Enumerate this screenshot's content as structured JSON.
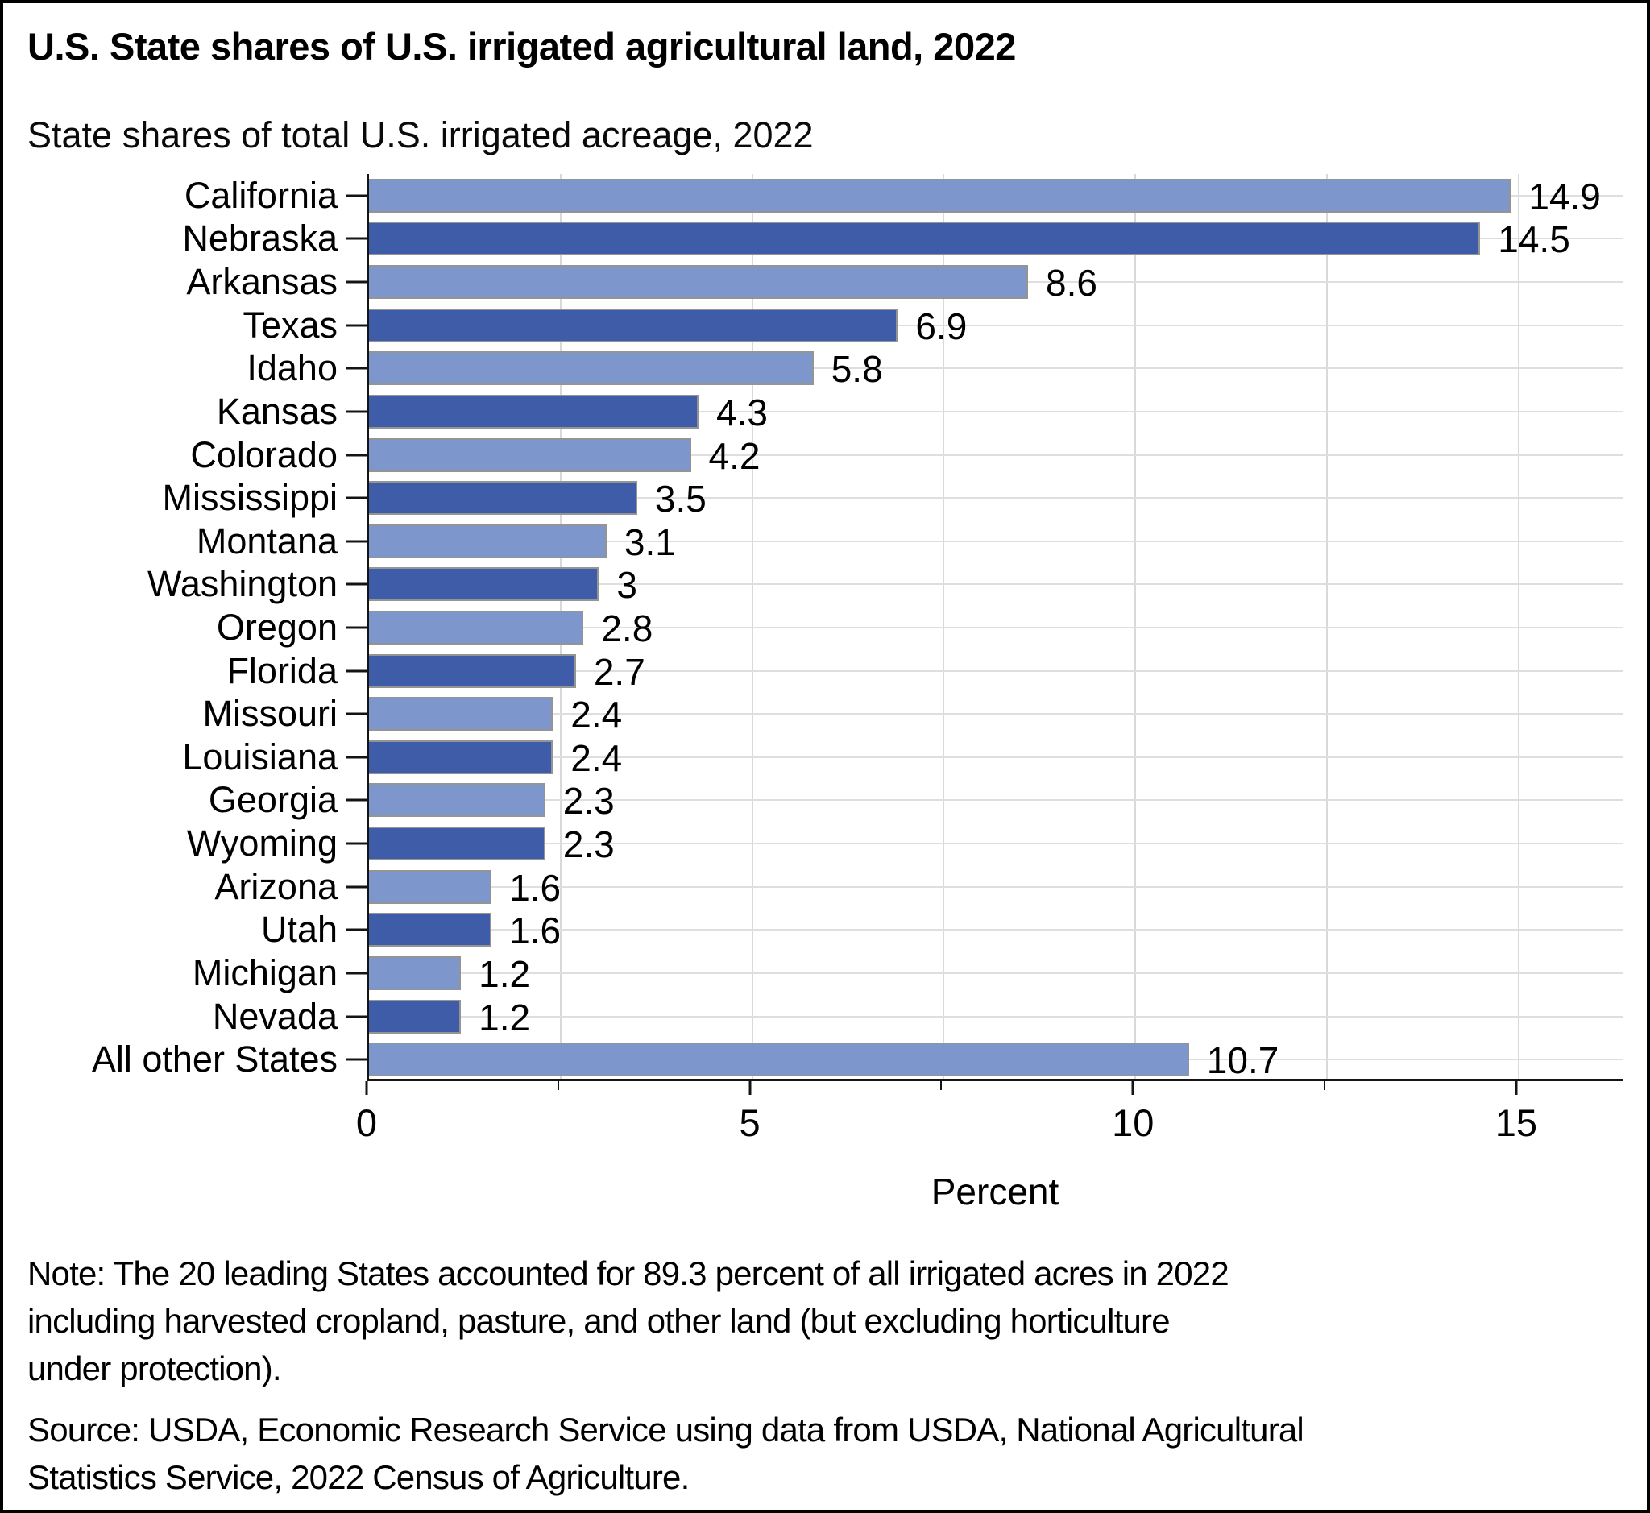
{
  "header": {
    "title": "U.S. State shares of U.S. irrigated agricultural land, 2022",
    "subtitle": "State shares of total U.S. irrigated acreage, 2022"
  },
  "chart_data": {
    "type": "bar",
    "orientation": "horizontal",
    "title": "U.S. State shares of U.S. irrigated agricultural land, 2022",
    "subtitle": "State shares of total U.S. irrigated acreage, 2022",
    "categories": [
      "California",
      "Nebraska",
      "Arkansas",
      "Texas",
      "Idaho",
      "Kansas",
      "Colorado",
      "Mississippi",
      "Montana",
      "Washington",
      "Oregon",
      "Florida",
      "Missouri",
      "Louisiana",
      "Georgia",
      "Wyoming",
      "Arizona",
      "Utah",
      "Michigan",
      "Nevada",
      "All other States"
    ],
    "values": [
      14.9,
      14.5,
      8.6,
      6.9,
      5.8,
      4.3,
      4.2,
      3.5,
      3.1,
      3.0,
      2.8,
      2.7,
      2.4,
      2.4,
      2.3,
      2.3,
      1.6,
      1.6,
      1.2,
      1.2,
      10.7
    ],
    "value_labels": [
      "14.9",
      "14.5",
      "8.6",
      "6.9",
      "5.8",
      "4.3",
      "4.2",
      "3.5",
      "3.1",
      "3",
      "2.8",
      "2.7",
      "2.4",
      "2.4",
      "2.3",
      "2.3",
      "1.6",
      "1.6",
      "1.2",
      "1.2",
      "10.7"
    ],
    "xlabel": "Percent",
    "xlim": [
      0,
      16.4
    ],
    "x_major_ticks": [
      0,
      5,
      10,
      15
    ],
    "x_minor_ticks": [
      2.5,
      7.5,
      12.5
    ],
    "gridlines_x": [
      2.5,
      5,
      7.5,
      10,
      12.5,
      15
    ],
    "grid": "vertical every 2.5 + horizontal line per category row",
    "legend_position": "none",
    "colors": {
      "bar_light": "#7d97cc",
      "bar_dark": "#3e5ca8",
      "bar_border": "#949494",
      "gridline": "#d9d9d9",
      "axis": "#141414",
      "pattern": "alternating light/dark, first row light"
    }
  },
  "footer": {
    "note_lines": [
      "Note: The 20 leading States accounted for 89.3 percent of all irrigated acres in 2022",
      "including harvested cropland, pasture, and other land (but excluding horticulture",
      "under protection)."
    ],
    "source_lines": [
      "Source: USDA, Economic Research Service using data from USDA, National Agricultural",
      "Statistics Service, 2022 Census of Agriculture."
    ]
  }
}
